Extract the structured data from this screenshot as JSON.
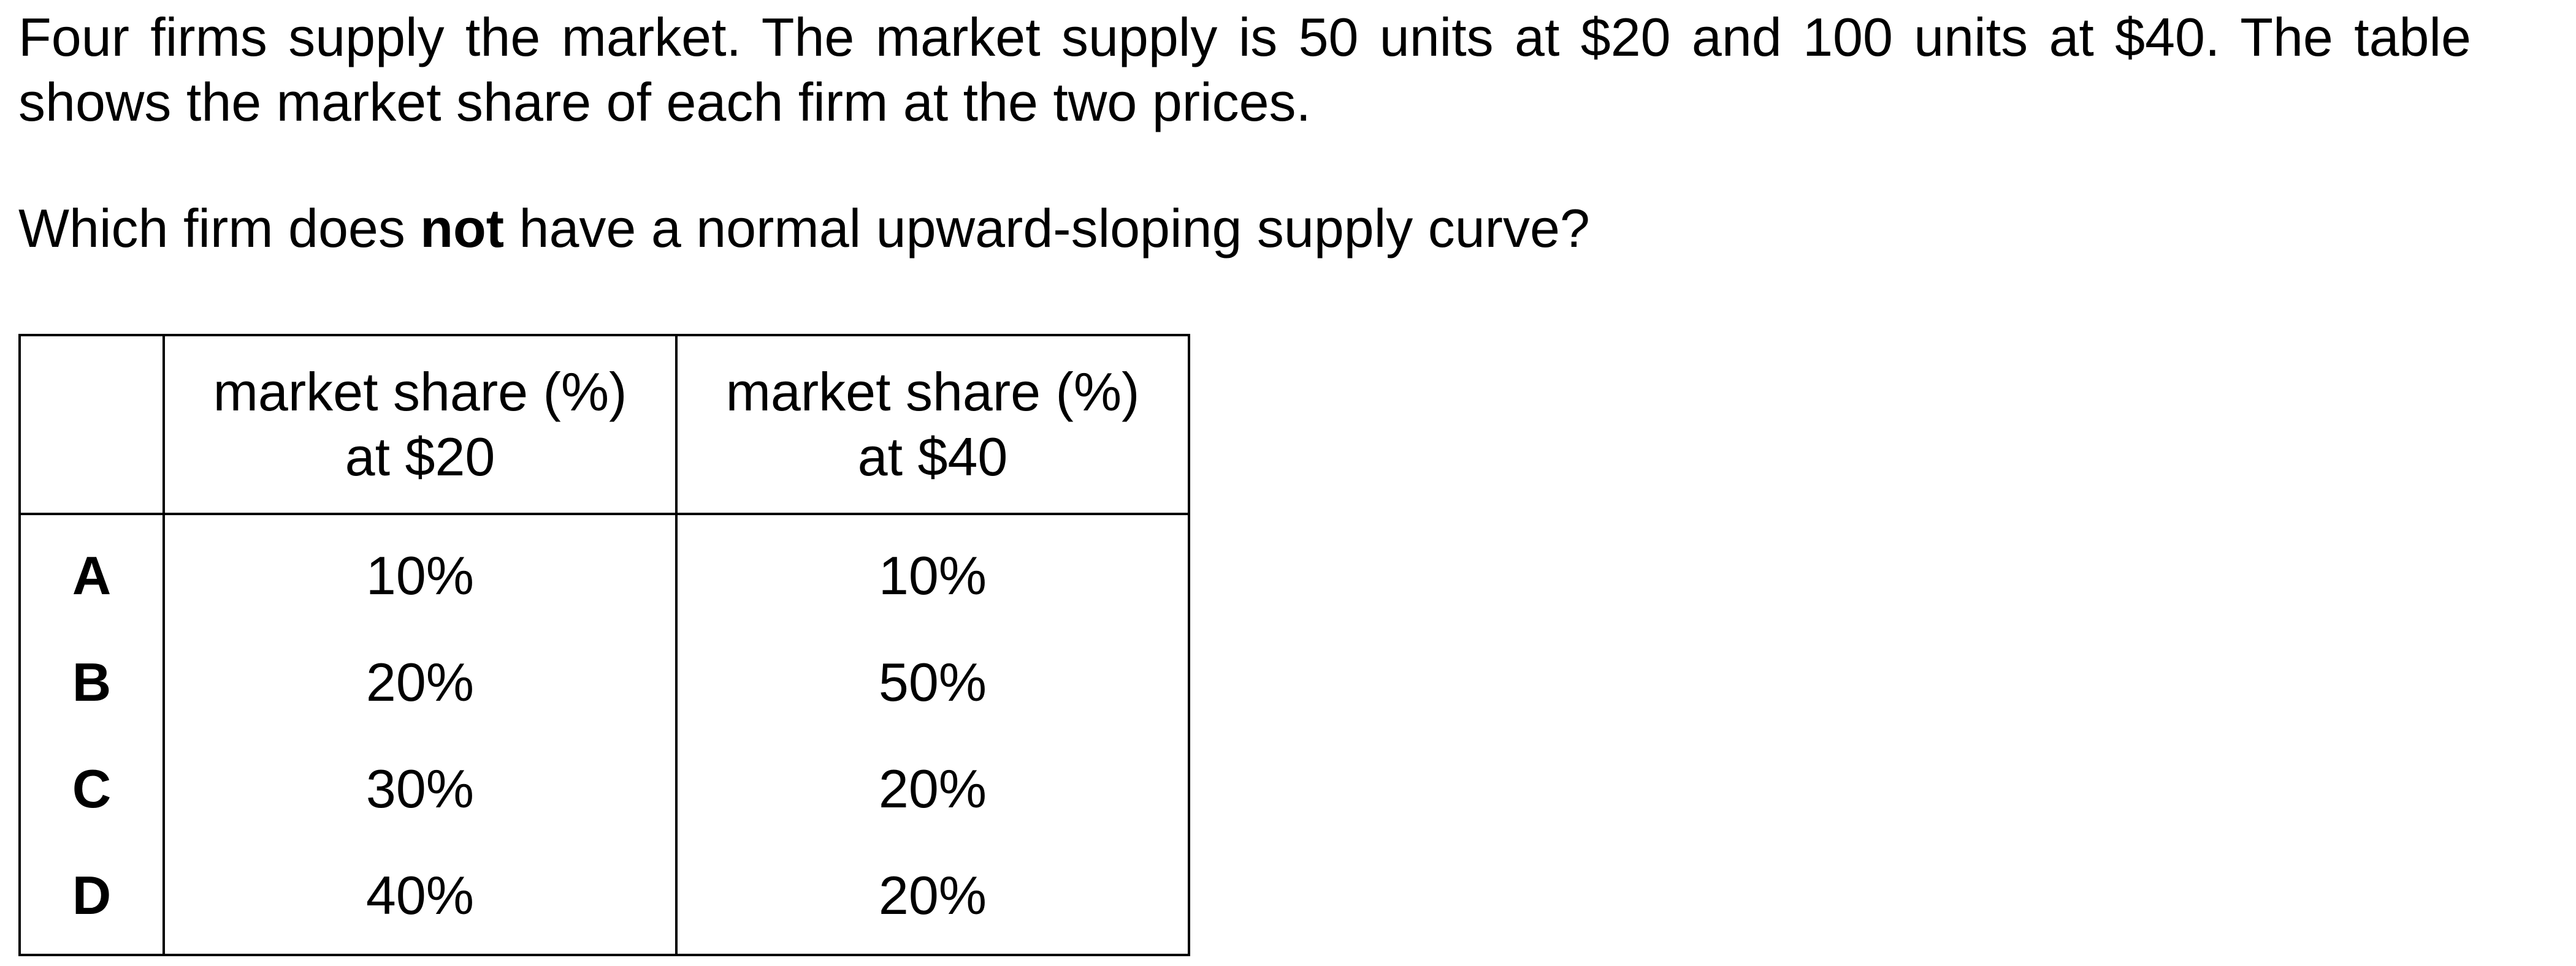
{
  "question": {
    "intro": "Four firms supply the market. The market supply is 50 units at $20 and 100 units at $40. The table shows the market share of each firm at the two prices.",
    "prompt_before": "Which firm does ",
    "prompt_emphasis": "not",
    "prompt_after": " have a normal upward-sloping supply curve?"
  },
  "table": {
    "headers": [
      {
        "line1": "market share (%)",
        "line2": "at $20"
      },
      {
        "line1": "market share (%)",
        "line2": "at $40"
      }
    ],
    "rows": [
      {
        "label": "A",
        "at20": "10%",
        "at40": "10%"
      },
      {
        "label": "B",
        "at20": "20%",
        "at40": "50%"
      },
      {
        "label": "C",
        "at20": "30%",
        "at40": "20%"
      },
      {
        "label": "D",
        "at20": "40%",
        "at40": "20%"
      }
    ]
  }
}
